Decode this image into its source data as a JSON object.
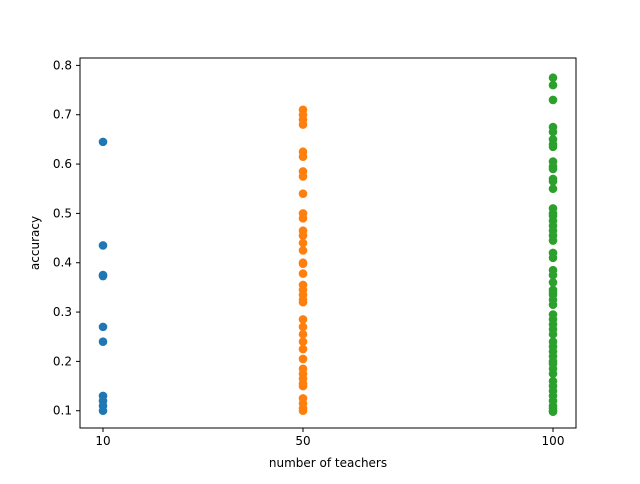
{
  "chart_data": {
    "type": "scatter",
    "title": "",
    "xlabel": "number of teachers",
    "ylabel": "accuracy",
    "x_ticks": [
      "10",
      "50",
      "100"
    ],
    "y_ticks": [
      "0.1",
      "0.2",
      "0.3",
      "0.4",
      "0.5",
      "0.6",
      "0.7",
      "0.8"
    ],
    "ylim": [
      0.065,
      0.815
    ],
    "grid": false,
    "legend": "none",
    "series": [
      {
        "color": "#1f77b4",
        "x": 10,
        "y": [
          0.645,
          0.435,
          0.375,
          0.373,
          0.27,
          0.24,
          0.13,
          0.12,
          0.11,
          0.1
        ]
      },
      {
        "color": "#ff7f0e",
        "x": 50,
        "y": [
          0.71,
          0.7,
          0.69,
          0.68,
          0.625,
          0.615,
          0.585,
          0.575,
          0.54,
          0.5,
          0.49,
          0.465,
          0.455,
          0.44,
          0.425,
          0.4,
          0.398,
          0.378,
          0.355,
          0.345,
          0.335,
          0.325,
          0.32,
          0.285,
          0.27,
          0.255,
          0.24,
          0.225,
          0.205,
          0.185,
          0.175,
          0.165,
          0.155,
          0.15,
          0.125,
          0.115,
          0.105,
          0.1
        ]
      },
      {
        "color": "#2ca02c",
        "x": 100,
        "y": [
          0.775,
          0.76,
          0.73,
          0.675,
          0.665,
          0.65,
          0.64,
          0.635,
          0.605,
          0.595,
          0.59,
          0.57,
          0.565,
          0.55,
          0.51,
          0.5,
          0.495,
          0.485,
          0.475,
          0.465,
          0.455,
          0.445,
          0.42,
          0.41,
          0.385,
          0.375,
          0.36,
          0.345,
          0.34,
          0.335,
          0.325,
          0.315,
          0.295,
          0.285,
          0.275,
          0.265,
          0.255,
          0.24,
          0.23,
          0.22,
          0.21,
          0.2,
          0.195,
          0.185,
          0.175,
          0.16,
          0.15,
          0.14,
          0.13,
          0.12,
          0.11,
          0.105,
          0.1,
          0.098
        ]
      }
    ]
  }
}
